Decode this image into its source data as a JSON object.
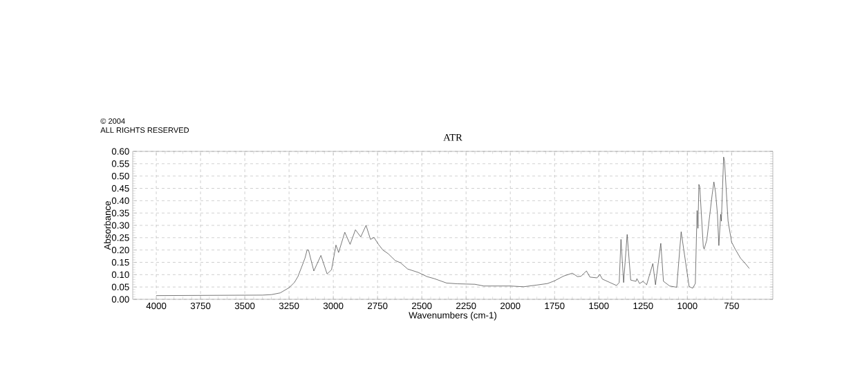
{
  "chart_data": {
    "type": "line",
    "title": "ATR",
    "xlabel": "Wavenumbers (cm-1)",
    "ylabel": "Absorbance",
    "annotations": [
      "© 2004",
      "ALL RIGHTS RESERVED"
    ],
    "xlim": [
      4133,
      517
    ],
    "ylim": [
      0,
      0.6
    ],
    "xticks": [
      4000,
      3750,
      3500,
      3250,
      3000,
      2750,
      2500,
      2250,
      2000,
      1750,
      1500,
      1250,
      1000,
      750
    ],
    "yticks": [
      {
        "value": 0,
        "label": "0.00"
      },
      {
        "value": 0.05,
        "label": "0.05"
      },
      {
        "value": 0.1,
        "label": "0.10"
      },
      {
        "value": 0.15,
        "label": "0.15"
      },
      {
        "value": 0.2,
        "label": "0.20"
      },
      {
        "value": 0.25,
        "label": "0.25"
      },
      {
        "value": 0.3,
        "label": "0.30"
      },
      {
        "value": 0.35,
        "label": "0.35"
      },
      {
        "value": 0.4,
        "label": "0.40"
      },
      {
        "value": 0.45,
        "label": "0.45"
      },
      {
        "value": 0.5,
        "label": "0.50"
      },
      {
        "value": 0.55,
        "label": "0.55"
      },
      {
        "value": 0.6,
        "label": "0.60"
      }
    ],
    "grid": true,
    "marker": "none",
    "line_style": "solid",
    "series": [
      {
        "color": "#333333",
        "x": [
          4000,
          3400,
          3350,
          3300,
          3250,
          3220,
          3200,
          3180,
          3160,
          3148,
          3140,
          3130,
          3110,
          3070,
          3035,
          3010,
          2985,
          2970,
          2935,
          2905,
          2875,
          2845,
          2815,
          2790,
          2770,
          2745,
          2720,
          2690,
          2650,
          2620,
          2580,
          2520,
          2470,
          2430,
          2360,
          2300,
          2200,
          2150,
          2000,
          1925,
          1850,
          1790,
          1750,
          1700,
          1650,
          1620,
          1600,
          1570,
          1550,
          1510,
          1495,
          1480,
          1400,
          1385,
          1375,
          1360,
          1340,
          1320,
          1290,
          1285,
          1270,
          1250,
          1230,
          1195,
          1180,
          1150,
          1135,
          1100,
          1060,
          1035,
          990,
          970,
          955,
          945,
          940,
          935,
          930,
          910,
          905,
          890,
          860,
          850,
          840,
          830,
          822,
          812,
          808,
          795,
          790,
          770,
          750,
          730,
          700,
          670,
          650
        ],
        "values": [
          0.015,
          0.017,
          0.019,
          0.026,
          0.047,
          0.068,
          0.092,
          0.129,
          0.167,
          0.2,
          0.2,
          0.171,
          0.115,
          0.178,
          0.103,
          0.12,
          0.22,
          0.19,
          0.272,
          0.223,
          0.282,
          0.253,
          0.3,
          0.243,
          0.251,
          0.223,
          0.2,
          0.185,
          0.157,
          0.148,
          0.123,
          0.109,
          0.092,
          0.084,
          0.066,
          0.063,
          0.061,
          0.054,
          0.054,
          0.051,
          0.058,
          0.064,
          0.075,
          0.094,
          0.106,
          0.092,
          0.094,
          0.115,
          0.09,
          0.087,
          0.101,
          0.082,
          0.056,
          0.068,
          0.243,
          0.068,
          0.263,
          0.078,
          0.073,
          0.084,
          0.064,
          0.073,
          0.059,
          0.145,
          0.059,
          0.227,
          0.073,
          0.054,
          0.049,
          0.274,
          0.052,
          0.045,
          0.064,
          0.36,
          0.288,
          0.466,
          0.457,
          0.213,
          0.204,
          0.241,
          0.424,
          0.476,
          0.429,
          0.345,
          0.218,
          0.345,
          0.317,
          0.577,
          0.56,
          0.317,
          0.232,
          0.204,
          0.167,
          0.143,
          0.125
        ]
      }
    ]
  }
}
